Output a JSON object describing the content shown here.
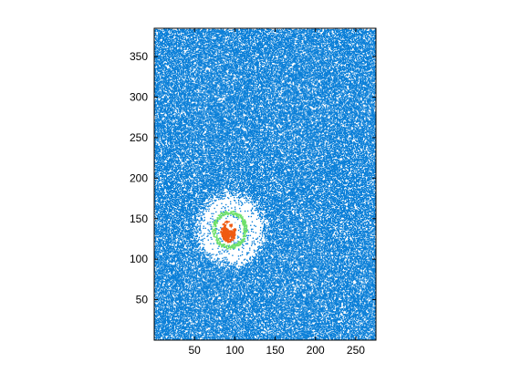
{
  "chart_data": {
    "type": "scatter",
    "title": "",
    "xlabel": "",
    "ylabel": "",
    "xlim": [
      0,
      275
    ],
    "ylim": [
      0,
      385
    ],
    "grid": false,
    "x_ticks": [
      50,
      100,
      150,
      200,
      250
    ],
    "y_ticks": [
      50,
      100,
      150,
      200,
      250,
      300,
      350
    ],
    "x_tick_labels": [
      "50",
      "100",
      "150",
      "200",
      "250"
    ],
    "y_tick_labels": [
      "50",
      "100",
      "150",
      "200",
      "250",
      "300",
      "350"
    ],
    "colors": {
      "background_noise": "#0a7fd8",
      "ring": "#6ee06a",
      "core": "#ef5a12",
      "axes": "#000000"
    },
    "series": [
      {
        "role": "background-noise",
        "color": "#0a7fd8",
        "x_range": [
          0,
          275
        ],
        "y_range": [
          0,
          385
        ],
        "density": 0.62
      },
      {
        "role": "cleared-halo",
        "center": [
          95,
          137
        ],
        "radius_x": 38,
        "radius_y": 40
      },
      {
        "role": "ring",
        "color": "#6ee06a",
        "center": [
          93,
          137
        ],
        "radius_x": 20,
        "radius_y": 22
      },
      {
        "role": "core",
        "color": "#ef5a12",
        "center": [
          91,
          135
        ],
        "radius_x": 9,
        "radius_y": 13
      }
    ]
  }
}
